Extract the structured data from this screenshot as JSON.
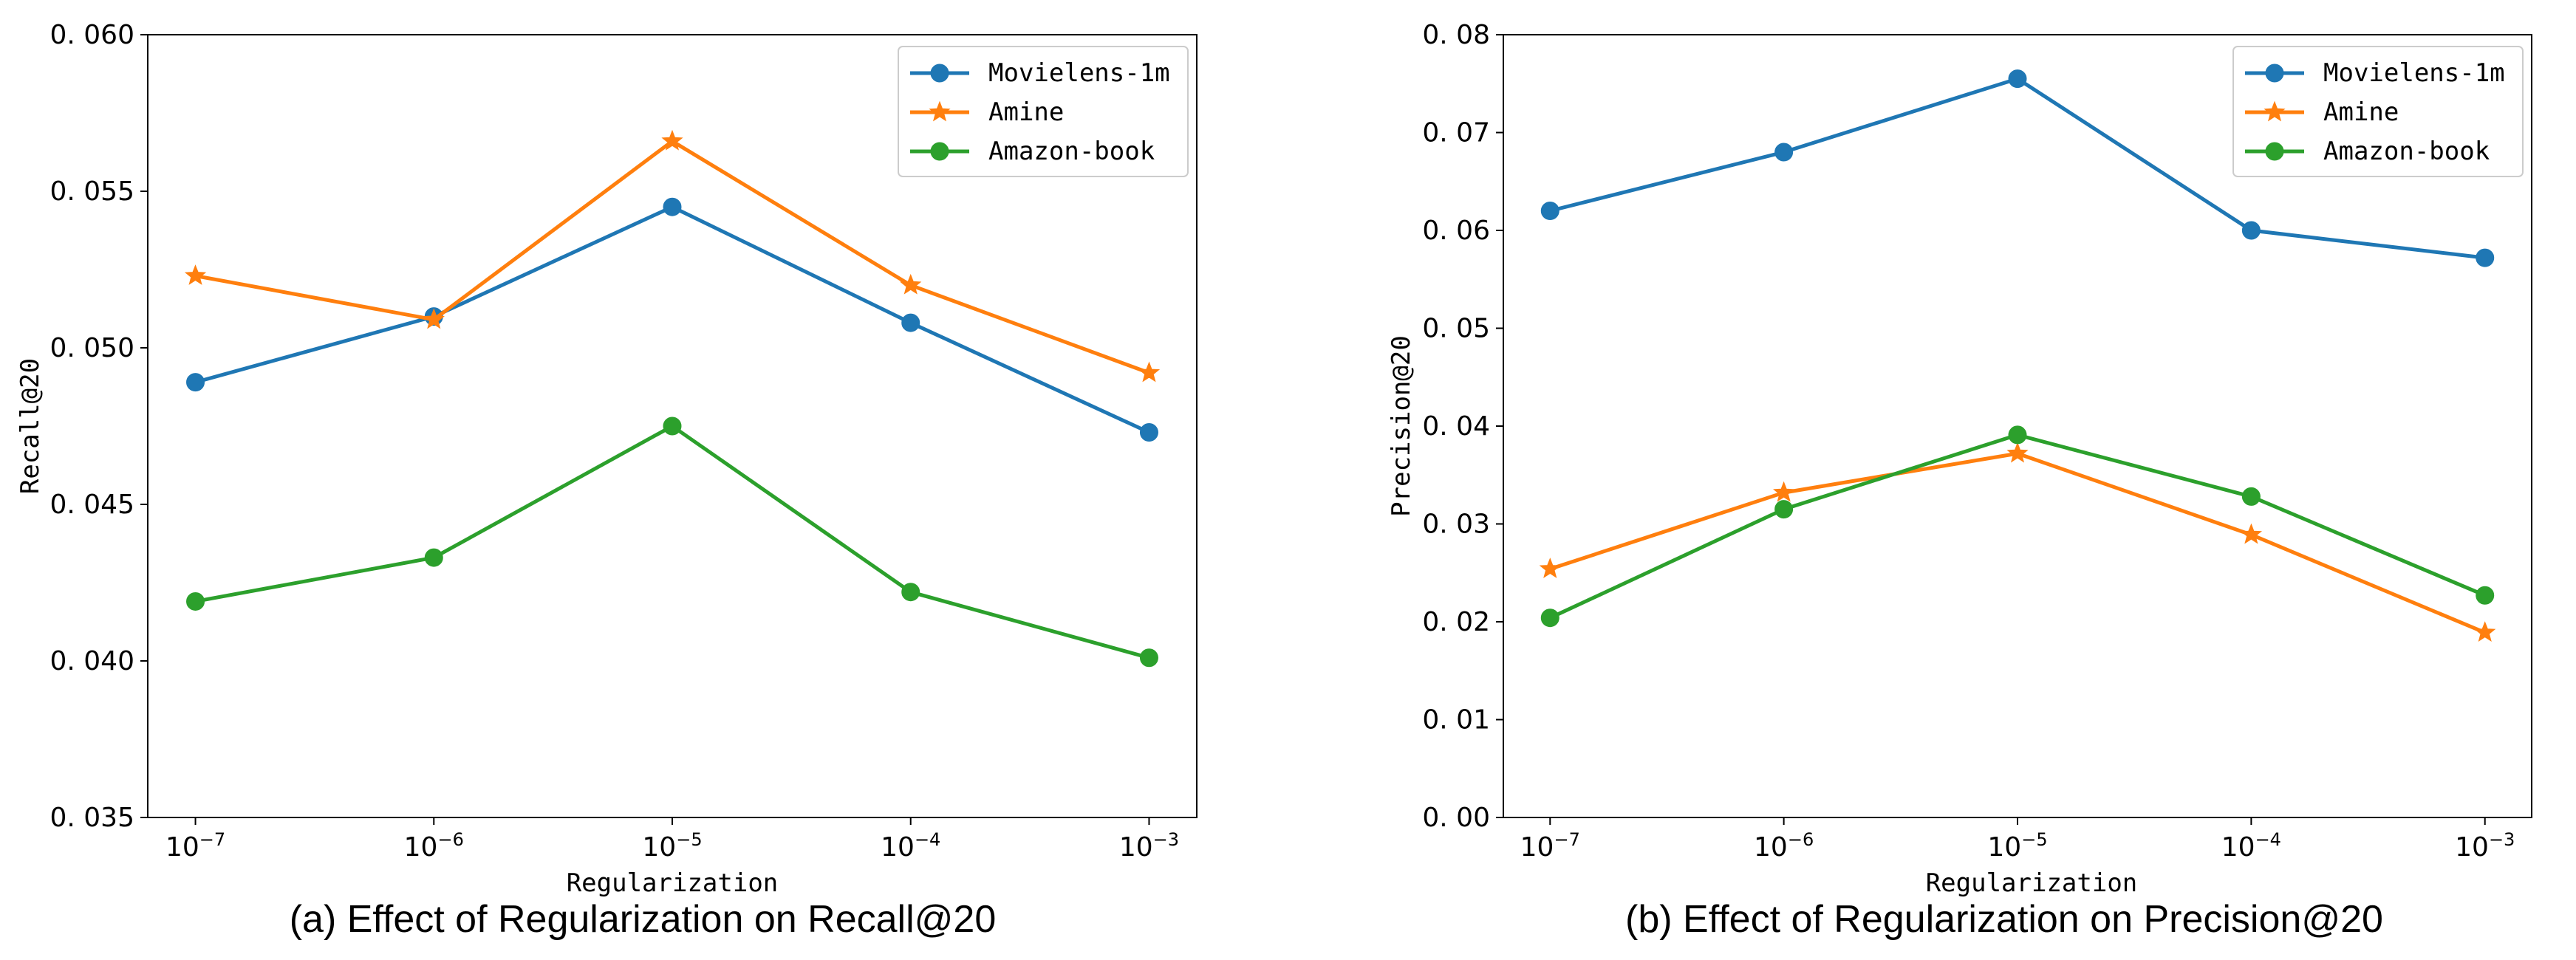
{
  "chart_data": [
    {
      "type": "line",
      "caption": "(a) Effect of Regularization on Recall@20",
      "xlabel": "Regularization",
      "ylabel": "Recall@20",
      "categories": [
        "1e-7",
        "1e-6",
        "1e-5",
        "1e-4",
        "1e-3"
      ],
      "x_tick_labels": [
        {
          "base": "10",
          "exp": "−7"
        },
        {
          "base": "10",
          "exp": "−6"
        },
        {
          "base": "10",
          "exp": "−5"
        },
        {
          "base": "10",
          "exp": "−4"
        },
        {
          "base": "10",
          "exp": "−3"
        }
      ],
      "ylim": [
        0.035,
        0.06
      ],
      "yticks": [
        0.035,
        0.04,
        0.045,
        0.05,
        0.055,
        0.06
      ],
      "ytick_labels": [
        "0. 035",
        "0. 040",
        "0. 045",
        "0. 050",
        "0. 055",
        "0. 060"
      ],
      "legend_position": "top-right",
      "series": [
        {
          "name": "Movielens-1m",
          "color": "#1f77b4",
          "marker": "circle",
          "values": [
            0.0489,
            0.051,
            0.0545,
            0.0508,
            0.0473
          ]
        },
        {
          "name": "Amine",
          "color": "#ff7f0e",
          "marker": "star",
          "values": [
            0.0523,
            0.0509,
            0.0566,
            0.052,
            0.0492
          ]
        },
        {
          "name": "Amazon-book",
          "color": "#2ca02c",
          "marker": "circle",
          "values": [
            0.0419,
            0.0433,
            0.0475,
            0.0422,
            0.0401
          ]
        }
      ]
    },
    {
      "type": "line",
      "caption": "(b) Effect of Regularization on Precision@20",
      "xlabel": "Regularization",
      "ylabel": "Precision@20",
      "categories": [
        "1e-7",
        "1e-6",
        "1e-5",
        "1e-4",
        "1e-3"
      ],
      "x_tick_labels": [
        {
          "base": "10",
          "exp": "−7"
        },
        {
          "base": "10",
          "exp": "−6"
        },
        {
          "base": "10",
          "exp": "−5"
        },
        {
          "base": "10",
          "exp": "−4"
        },
        {
          "base": "10",
          "exp": "−3"
        }
      ],
      "ylim": [
        0.0,
        0.08
      ],
      "yticks": [
        0.0,
        0.01,
        0.02,
        0.03,
        0.04,
        0.05,
        0.06,
        0.07,
        0.08
      ],
      "ytick_labels": [
        "0. 00",
        "0. 01",
        "0. 02",
        "0. 03",
        "0. 04",
        "0. 05",
        "0. 06",
        "0. 07",
        "0. 08"
      ],
      "legend_position": "top-right",
      "series": [
        {
          "name": "Movielens-1m",
          "color": "#1f77b4",
          "marker": "circle",
          "values": [
            0.062,
            0.068,
            0.0755,
            0.06,
            0.0572
          ]
        },
        {
          "name": "Amine",
          "color": "#ff7f0e",
          "marker": "star",
          "values": [
            0.0254,
            0.0332,
            0.0372,
            0.0289,
            0.0189
          ]
        },
        {
          "name": "Amazon-book",
          "color": "#2ca02c",
          "marker": "circle",
          "values": [
            0.0204,
            0.0315,
            0.0391,
            0.0328,
            0.0227
          ]
        }
      ]
    }
  ]
}
